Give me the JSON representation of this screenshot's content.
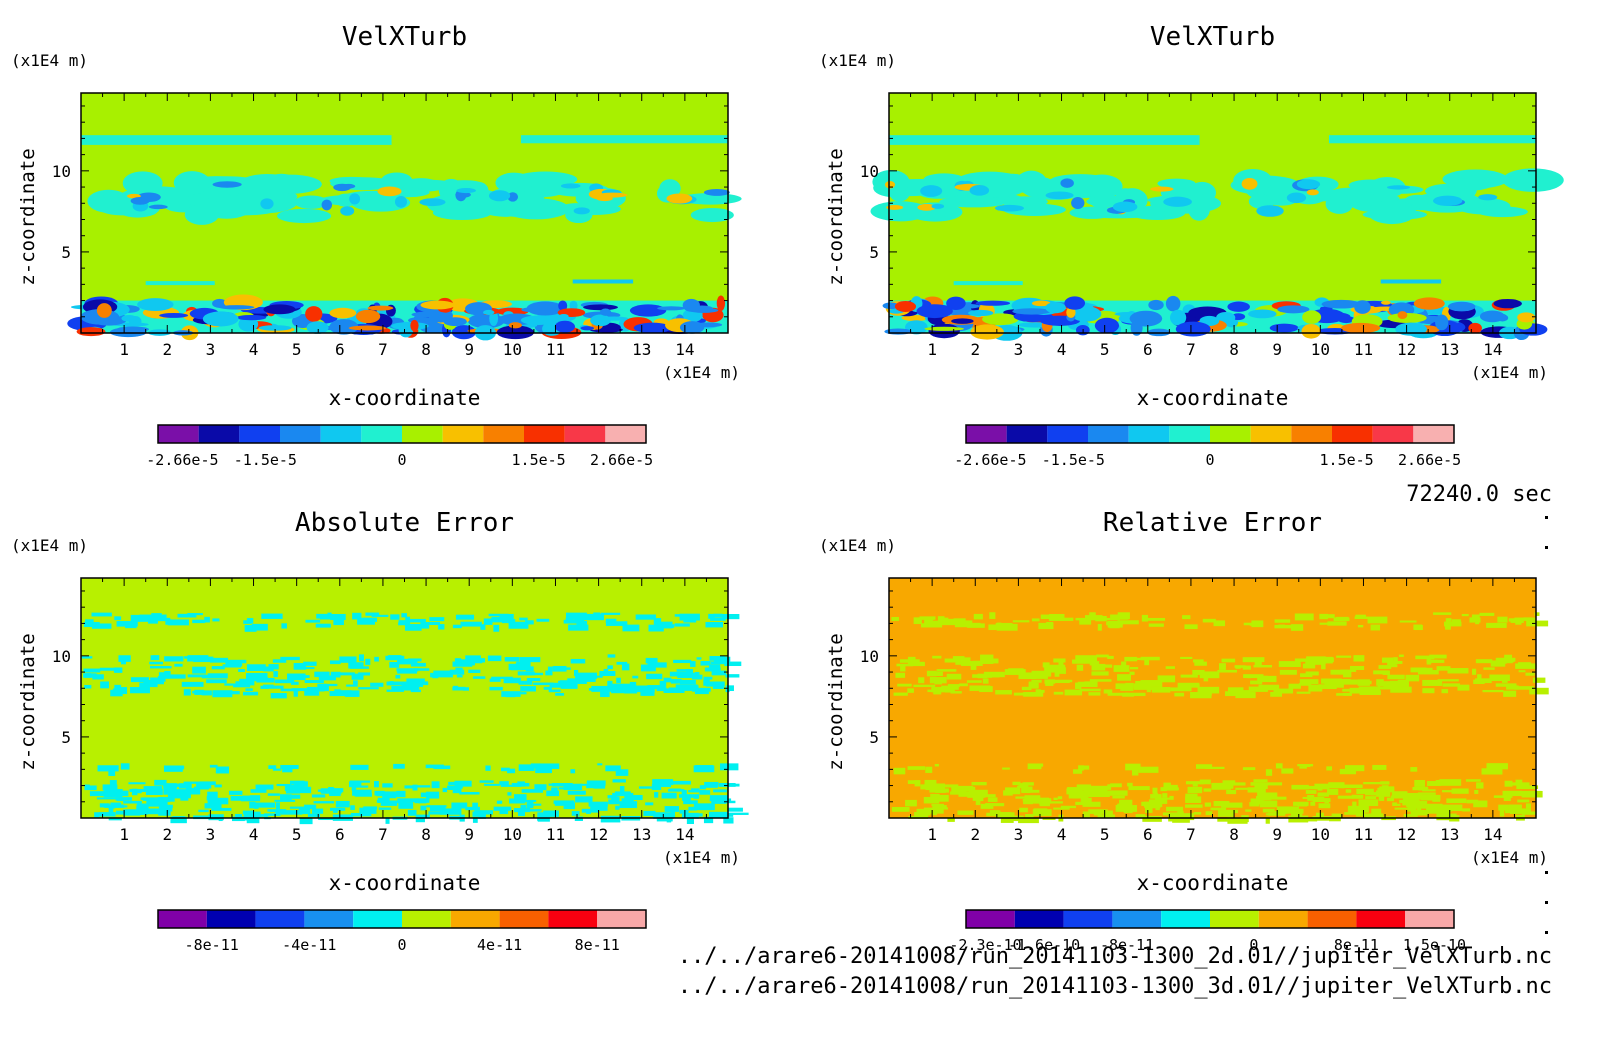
{
  "time_label": "72240.0 sec",
  "files": [
    "../../arare6-20141008/run_20141103-1300_2d.01//jupiter_VelXTurb.nc",
    "../../arare6-20141008/run_20141103-1300_3d.01//jupiter_VelXTurb.nc"
  ],
  "chart_data": [
    {
      "type": "heatmap",
      "title": "VelXTurb",
      "xlabel": "x-coordinate",
      "ylabel": "z-coordinate",
      "x_unit": "(x1E4 m)",
      "y_unit": "(x1E4 m)",
      "xlim": [
        0,
        15
      ],
      "ylim": [
        0,
        14.8
      ],
      "xticks": [
        "1",
        "2",
        "3",
        "4",
        "5",
        "6",
        "7",
        "8",
        "9",
        "10",
        "11",
        "12",
        "13",
        "14"
      ],
      "yticks": [
        "5",
        "10"
      ],
      "colorbar_labels": [
        "-2.66e-5",
        "-1.5e-5",
        "0",
        "1.5e-5",
        "2.66e-5"
      ],
      "colors": [
        "#7a0fa8",
        "#0a0aa8",
        "#1040f0",
        "#1a88f0",
        "#10c8f0",
        "#20f0d0",
        "#a8f000",
        "#f8c000",
        "#f88000",
        "#f83000",
        "#f83848",
        "#f8b0b0"
      ]
    },
    {
      "type": "heatmap",
      "title": "VelXTurb",
      "xlabel": "x-coordinate",
      "ylabel": "z-coordinate",
      "x_unit": "(x1E4 m)",
      "y_unit": "(x1E4 m)",
      "xlim": [
        0,
        15
      ],
      "ylim": [
        0,
        14.8
      ],
      "xticks": [
        "1",
        "2",
        "3",
        "4",
        "5",
        "6",
        "7",
        "8",
        "9",
        "10",
        "11",
        "12",
        "13",
        "14"
      ],
      "yticks": [
        "5",
        "10"
      ],
      "colorbar_labels": [
        "-2.66e-5",
        "-1.5e-5",
        "0",
        "1.5e-5",
        "2.66e-5"
      ],
      "colors": [
        "#7a0fa8",
        "#0a0aa8",
        "#1040f0",
        "#1a88f0",
        "#10c8f0",
        "#20f0d0",
        "#a8f000",
        "#f8c000",
        "#f88000",
        "#f83000",
        "#f83848",
        "#f8b0b0"
      ]
    },
    {
      "type": "heatmap",
      "title": "Absolute Error",
      "xlabel": "x-coordinate",
      "ylabel": "z-coordinate",
      "x_unit": "(x1E4 m)",
      "y_unit": "(x1E4 m)",
      "xlim": [
        0,
        15
      ],
      "ylim": [
        0,
        14.8
      ],
      "xticks": [
        "1",
        "2",
        "3",
        "4",
        "5",
        "6",
        "7",
        "8",
        "9",
        "10",
        "11",
        "12",
        "13",
        "14"
      ],
      "yticks": [
        "5",
        "10"
      ],
      "colorbar_labels": [
        "-8e-11",
        "-4e-11",
        "0",
        "4e-11",
        "8e-11"
      ],
      "colors": [
        "#8000a8",
        "#0000b0",
        "#1040f0",
        "#1890f0",
        "#00f0f0",
        "#b8f000",
        "#f8a800",
        "#f86000",
        "#f80010",
        "#f8a8a8"
      ]
    },
    {
      "type": "heatmap",
      "title": "Relative Error",
      "xlabel": "x-coordinate",
      "ylabel": "z-coordinate",
      "x_unit": "(x1E4 m)",
      "y_unit": "(x1E4 m)",
      "xlim": [
        0,
        15
      ],
      "ylim": [
        0,
        14.8
      ],
      "xticks": [
        "1",
        "2",
        "3",
        "4",
        "5",
        "6",
        "7",
        "8",
        "9",
        "10",
        "11",
        "12",
        "13",
        "14"
      ],
      "yticks": [
        "5",
        "10"
      ],
      "colorbar_labels": [
        "-2.3e-10",
        "-1.6e-10",
        "-8e-11",
        "0",
        "8e-11",
        "1.5e-10"
      ],
      "colors": [
        "#8000a8",
        "#0000b0",
        "#1040f0",
        "#1890f0",
        "#00f0f0",
        "#b8f000",
        "#f8a800",
        "#f86000",
        "#f80010",
        "#f8a8a8"
      ]
    }
  ]
}
